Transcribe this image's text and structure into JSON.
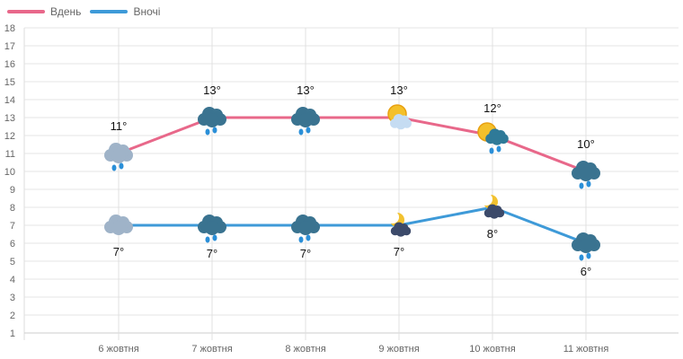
{
  "chart_data": {
    "type": "line",
    "categories": [
      "6 жовтня",
      "7 жовтня",
      "8 жовтня",
      "9 жовтня",
      "10 жовтня",
      "11 жовтня"
    ],
    "series": [
      {
        "name": "Вдень",
        "color": "#e8688a",
        "values": [
          11,
          13,
          13,
          13,
          12,
          10
        ],
        "labels": [
          "11°",
          "13°",
          "13°",
          "13°",
          "12°",
          "10°"
        ],
        "icons": [
          "light-cloud-rain",
          "dark-cloud-rain",
          "dark-cloud-rain",
          "sun-cloud",
          "sun-dark-cloud-rain",
          "dark-cloud-rain"
        ]
      },
      {
        "name": "Вночі",
        "color": "#3e9ad8",
        "values": [
          7,
          7,
          7,
          7,
          8,
          6
        ],
        "labels": [
          "7°",
          "7°",
          "7°",
          "7°",
          "8°",
          "6°"
        ],
        "icons": [
          "light-cloud",
          "dark-cloud-rain",
          "dark-cloud-rain",
          "moon-cloud",
          "moon-cloud",
          "dark-cloud-rain"
        ]
      }
    ],
    "yticks": [
      1,
      2,
      3,
      4,
      5,
      6,
      7,
      8,
      9,
      10,
      11,
      12,
      13,
      14,
      15,
      16,
      17,
      18
    ],
    "ylim": [
      1,
      18
    ],
    "grid": true,
    "legend": "top-left"
  }
}
